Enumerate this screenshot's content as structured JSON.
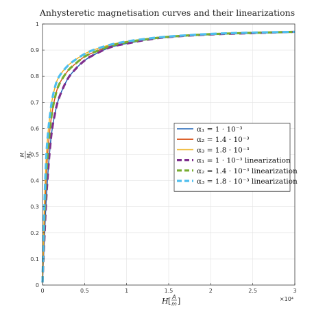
{
  "chart_data": {
    "type": "line",
    "title": "Anhysteretic magnetisation curves and their linearizations",
    "xlabel": "H[A/m]",
    "ylabel": "M/Ms",
    "x_multiplier_label": "×10⁴",
    "xlim": [
      0,
      30000
    ],
    "ylim": [
      0,
      1
    ],
    "x_ticks": [
      0,
      5000,
      10000,
      15000,
      20000,
      25000,
      30000
    ],
    "x_tick_labels": [
      "0",
      "0.5",
      "1",
      "1.5",
      "2",
      "2.5",
      "3"
    ],
    "y_ticks": [
      0,
      0.1,
      0.2,
      0.3,
      0.4,
      0.5,
      0.6,
      0.7,
      0.8,
      0.9,
      1
    ],
    "y_tick_labels": [
      "0",
      "0.1",
      "0.2",
      "0.3",
      "0.4",
      "0.5",
      "0.6",
      "0.7",
      "0.8",
      "0.9",
      "1"
    ],
    "grid": true,
    "legend_position": "center-right",
    "x": [
      0,
      200,
      500,
      1000,
      1500,
      2000,
      3000,
      4000,
      5000,
      6000,
      8000,
      10000,
      12500,
      15000,
      20000,
      25000,
      30000
    ],
    "series": [
      {
        "name": "α₁ = 1 · 10⁻³",
        "color": "#1f63b5",
        "style": "solid",
        "values": [
          0.01,
          0.16,
          0.36,
          0.56,
          0.66,
          0.72,
          0.79,
          0.83,
          0.86,
          0.88,
          0.91,
          0.925,
          0.94,
          0.95,
          0.96,
          0.965,
          0.97
        ]
      },
      {
        "name": "α₂ = 1.4 · 10⁻³",
        "color": "#d9541a",
        "style": "solid",
        "values": [
          0.01,
          0.22,
          0.45,
          0.63,
          0.72,
          0.77,
          0.82,
          0.85,
          0.875,
          0.89,
          0.915,
          0.93,
          0.942,
          0.951,
          0.961,
          0.966,
          0.97
        ]
      },
      {
        "name": "α₃ = 1.8 · 10⁻³",
        "color": "#edb120",
        "style": "solid",
        "values": [
          0.01,
          0.28,
          0.52,
          0.68,
          0.76,
          0.8,
          0.84,
          0.865,
          0.885,
          0.9,
          0.92,
          0.933,
          0.944,
          0.952,
          0.962,
          0.967,
          0.97
        ]
      },
      {
        "name": "α₁ = 1 · 10⁻³ linearization",
        "color": "#7e2f8e",
        "style": "dashed",
        "values": [
          0.01,
          0.16,
          0.36,
          0.56,
          0.66,
          0.72,
          0.79,
          0.83,
          0.86,
          0.88,
          0.91,
          0.925,
          0.94,
          0.95,
          0.96,
          0.965,
          0.97
        ]
      },
      {
        "name": "α₂ = 1.4 · 10⁻³ linearization",
        "color": "#77ac30",
        "style": "dashed",
        "values": [
          0.01,
          0.22,
          0.45,
          0.63,
          0.72,
          0.77,
          0.82,
          0.85,
          0.875,
          0.89,
          0.915,
          0.93,
          0.942,
          0.951,
          0.961,
          0.966,
          0.97
        ]
      },
      {
        "name": "α₃ = 1.8 · 10⁻³ linearization",
        "color": "#4dbeee",
        "style": "dashed",
        "values": [
          0.01,
          0.28,
          0.52,
          0.68,
          0.76,
          0.8,
          0.84,
          0.865,
          0.885,
          0.9,
          0.92,
          0.933,
          0.944,
          0.952,
          0.962,
          0.967,
          0.97
        ]
      }
    ]
  }
}
